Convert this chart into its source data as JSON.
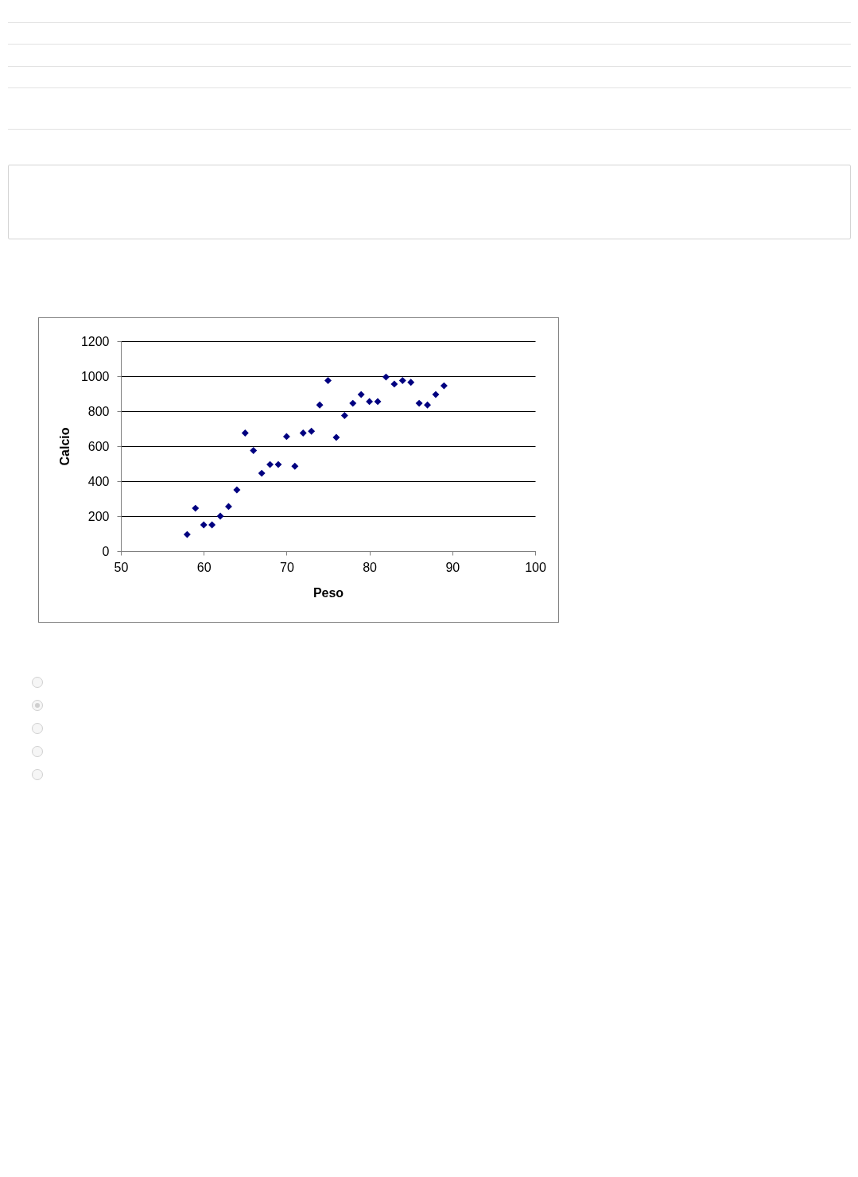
{
  "chart_data": {
    "type": "scatter",
    "xlabel": "Peso",
    "ylabel": "Calcio",
    "x": [
      58,
      59,
      60,
      61,
      62,
      63,
      64,
      65,
      66,
      67,
      68,
      69,
      70,
      71,
      72,
      73,
      74,
      75,
      76,
      77,
      78,
      79,
      80,
      81,
      82,
      83,
      84,
      85,
      86,
      87,
      88,
      89
    ],
    "values": [
      95,
      245,
      150,
      150,
      200,
      255,
      350,
      675,
      575,
      445,
      495,
      495,
      655,
      485,
      675,
      685,
      835,
      975,
      650,
      775,
      845,
      895,
      855,
      855,
      995,
      955,
      975,
      965,
      845,
      835,
      895,
      945
    ],
    "color": "#000080",
    "marker": "diamond",
    "xlim": [
      50,
      100
    ],
    "xticks": [
      50,
      60,
      70,
      80,
      90,
      100
    ],
    "ylim": [
      0,
      1200
    ],
    "yticks": [
      0,
      200,
      400,
      600,
      800,
      1000,
      1200
    ],
    "grid": "y"
  }
}
